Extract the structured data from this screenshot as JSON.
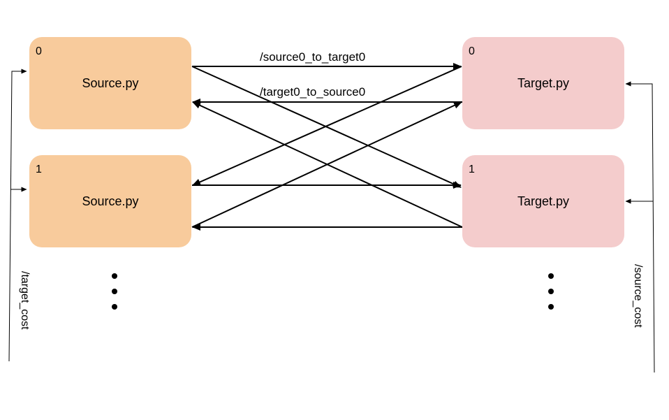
{
  "sources": [
    {
      "index": "0",
      "label": "Source.py"
    },
    {
      "index": "1",
      "label": "Source.py"
    }
  ],
  "targets": [
    {
      "index": "0",
      "label": "Target.py"
    },
    {
      "index": "1",
      "label": "Target.py"
    }
  ],
  "edge_labels": {
    "source_to_target": "/source0_to_target0",
    "target_to_source": "/target0_to_source0"
  },
  "side_labels": {
    "left": "/target_cost",
    "right": "/source_cost"
  },
  "colors": {
    "source_fill": "#f8cb9c",
    "target_fill": "#f4cccc",
    "line": "#000000"
  },
  "ellipsis_icon": "vertical-ellipsis-icon"
}
